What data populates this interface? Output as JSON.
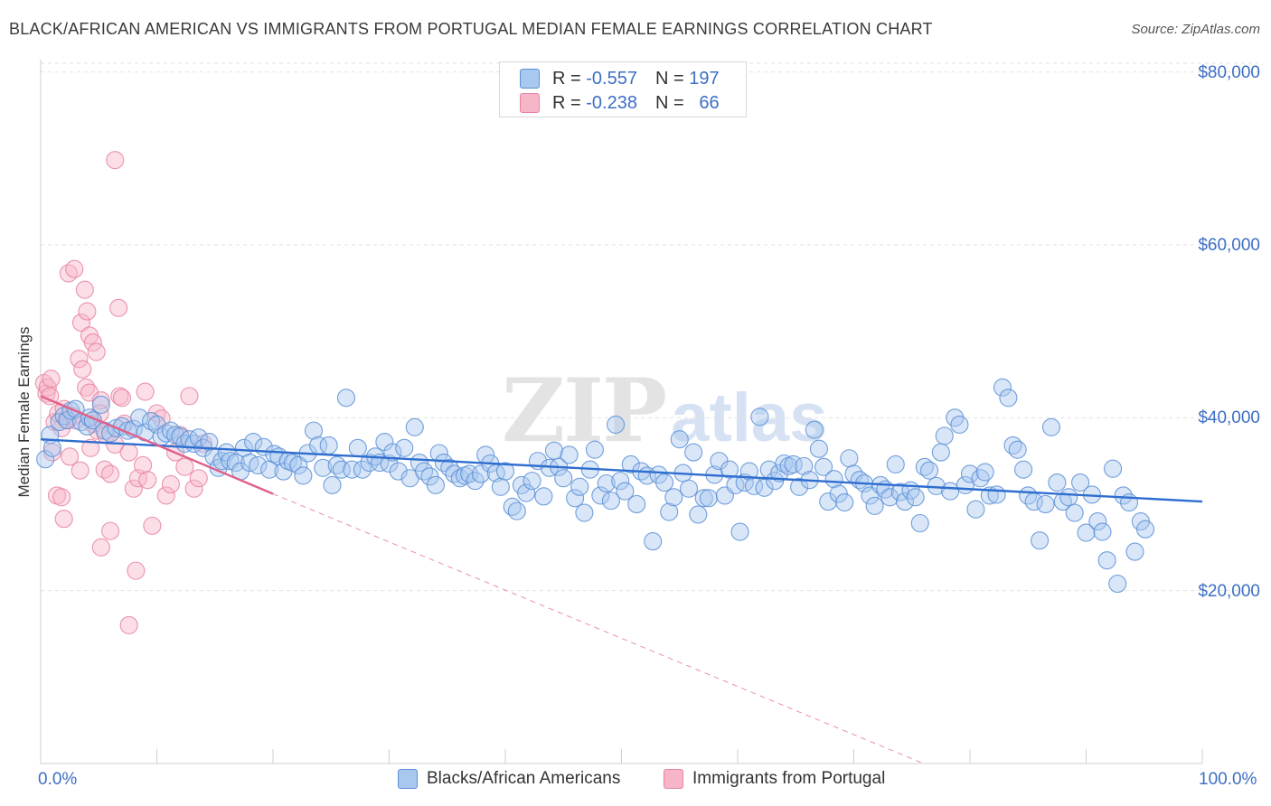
{
  "title": "BLACK/AFRICAN AMERICAN VS IMMIGRANTS FROM PORTUGAL MEDIAN FEMALE EARNINGS CORRELATION CHART",
  "source": "Source: ZipAtlas.com",
  "watermark": {
    "zip": "ZIP",
    "atlas": "atlas"
  },
  "legend": {
    "rows": [
      {
        "r_label": "R =",
        "r_value": "-0.557",
        "n_label": "N =",
        "n_value": "197"
      },
      {
        "r_label": "R =",
        "r_value": "-0.238",
        "n_label": "N =",
        "n_value": "66"
      }
    ]
  },
  "colors": {
    "blue_fill": "#a9c8f0",
    "blue_stroke": "#5b8fd6",
    "blue_line": "#2f6ecf",
    "pink_fill": "#f6b6c8",
    "pink_stroke": "#e882a2",
    "pink_line": "#e0608a",
    "grid": "#e2e2e2",
    "tick_text": "#3d6fc4"
  },
  "chart_data": {
    "type": "scatter",
    "title": "BLACK/AFRICAN AMERICAN VS IMMIGRANTS FROM PORTUGAL MEDIAN FEMALE EARNINGS CORRELATION CHART",
    "xlabel": "",
    "ylabel": "Median Female Earnings",
    "xlim": [
      0,
      100
    ],
    "ylim": [
      0,
      81000
    ],
    "x_tick_labels": [
      "0.0%",
      "100.0%"
    ],
    "y_ticks": [
      20000,
      40000,
      60000,
      80000
    ],
    "y_tick_labels": [
      "$20,000",
      "$40,000",
      "$60,000",
      "$80,000"
    ],
    "grid": true,
    "legend_position": "bottom",
    "series": [
      {
        "name": "Blacks/African Americans",
        "color": "#a9c8f0",
        "R": -0.557,
        "N": 197,
        "trend": {
          "x": [
            0,
            100
          ],
          "y": [
            37500,
            30300
          ]
        },
        "points": [
          [
            0.4,
            35200
          ],
          [
            0.8,
            38000
          ],
          [
            1.0,
            36500
          ],
          [
            1.6,
            39500
          ],
          [
            2.0,
            40200
          ],
          [
            2.3,
            39700
          ],
          [
            2.6,
            40800
          ],
          [
            3.0,
            41000
          ],
          [
            3.5,
            39500
          ],
          [
            4.0,
            39000
          ],
          [
            4.2,
            40000
          ],
          [
            4.5,
            39700
          ],
          [
            5.2,
            41500
          ],
          [
            5.5,
            38500
          ],
          [
            6.0,
            38200
          ],
          [
            6.5,
            38800
          ],
          [
            7.0,
            39000
          ],
          [
            7.5,
            38500
          ],
          [
            8.0,
            38700
          ],
          [
            8.5,
            40000
          ],
          [
            9.0,
            38300
          ],
          [
            9.5,
            39600
          ],
          [
            10.0,
            39200
          ],
          [
            10.4,
            37800
          ],
          [
            10.8,
            38200
          ],
          [
            11.2,
            38500
          ],
          [
            11.6,
            38000
          ],
          [
            12.0,
            37800
          ],
          [
            12.4,
            37000
          ],
          [
            12.8,
            37500
          ],
          [
            13.2,
            37000
          ],
          [
            13.6,
            37700
          ],
          [
            14.0,
            36500
          ],
          [
            14.5,
            37200
          ],
          [
            14.9,
            35500
          ],
          [
            15.3,
            34200
          ],
          [
            15.6,
            35000
          ],
          [
            16.0,
            36000
          ],
          [
            16.3,
            35000
          ],
          [
            16.8,
            34800
          ],
          [
            17.2,
            33800
          ],
          [
            17.5,
            36500
          ],
          [
            18.0,
            34800
          ],
          [
            18.3,
            37200
          ],
          [
            18.7,
            34500
          ],
          [
            19.2,
            36600
          ],
          [
            19.7,
            34000
          ],
          [
            20.1,
            35800
          ],
          [
            20.5,
            35500
          ],
          [
            20.9,
            33800
          ],
          [
            21.3,
            35000
          ],
          [
            21.7,
            34800
          ],
          [
            22.2,
            34500
          ],
          [
            22.6,
            33300
          ],
          [
            23.0,
            35900
          ],
          [
            23.5,
            38500
          ],
          [
            23.9,
            36800
          ],
          [
            24.3,
            34200
          ],
          [
            24.8,
            36800
          ],
          [
            25.1,
            32200
          ],
          [
            25.5,
            34500
          ],
          [
            25.9,
            34000
          ],
          [
            26.3,
            42300
          ],
          [
            26.8,
            34000
          ],
          [
            27.3,
            36500
          ],
          [
            27.7,
            34000
          ],
          [
            28.3,
            34800
          ],
          [
            28.8,
            35500
          ],
          [
            29.2,
            34800
          ],
          [
            29.6,
            37200
          ],
          [
            30.0,
            34700
          ],
          [
            30.3,
            36000
          ],
          [
            30.8,
            33800
          ],
          [
            31.3,
            36500
          ],
          [
            31.8,
            33000
          ],
          [
            32.2,
            38900
          ],
          [
            32.6,
            34800
          ],
          [
            33.0,
            33800
          ],
          [
            33.5,
            33200
          ],
          [
            34.0,
            32200
          ],
          [
            34.3,
            35900
          ],
          [
            34.7,
            34800
          ],
          [
            35.2,
            34200
          ],
          [
            35.6,
            33500
          ],
          [
            36.1,
            33000
          ],
          [
            36.5,
            33300
          ],
          [
            36.9,
            33500
          ],
          [
            37.4,
            32700
          ],
          [
            37.9,
            33500
          ],
          [
            38.3,
            35700
          ],
          [
            38.7,
            34700
          ],
          [
            39.2,
            33600
          ],
          [
            39.6,
            32000
          ],
          [
            40.0,
            33800
          ],
          [
            40.6,
            29700
          ],
          [
            41.0,
            29200
          ],
          [
            41.4,
            32200
          ],
          [
            41.8,
            31300
          ],
          [
            42.3,
            32700
          ],
          [
            42.8,
            35000
          ],
          [
            43.3,
            30900
          ],
          [
            43.8,
            34200
          ],
          [
            44.2,
            36200
          ],
          [
            44.6,
            34300
          ],
          [
            45.0,
            33000
          ],
          [
            45.5,
            35700
          ],
          [
            46.0,
            30700
          ],
          [
            46.4,
            32000
          ],
          [
            46.8,
            29000
          ],
          [
            47.3,
            34000
          ],
          [
            47.7,
            36300
          ],
          [
            48.2,
            31000
          ],
          [
            48.7,
            32400
          ],
          [
            49.1,
            30400
          ],
          [
            49.5,
            39200
          ],
          [
            49.9,
            32700
          ],
          [
            50.3,
            31500
          ],
          [
            50.8,
            34600
          ],
          [
            51.3,
            30000
          ],
          [
            51.7,
            33800
          ],
          [
            52.2,
            33300
          ],
          [
            52.7,
            25700
          ],
          [
            53.2,
            33400
          ],
          [
            53.7,
            32500
          ],
          [
            54.1,
            29100
          ],
          [
            54.5,
            30800
          ],
          [
            55.0,
            37500
          ],
          [
            55.3,
            33600
          ],
          [
            55.8,
            31800
          ],
          [
            56.2,
            36000
          ],
          [
            56.6,
            28800
          ],
          [
            57.1,
            30700
          ],
          [
            57.5,
            30700
          ],
          [
            58.0,
            33400
          ],
          [
            58.4,
            35000
          ],
          [
            58.9,
            31000
          ],
          [
            59.3,
            34000
          ],
          [
            59.8,
            32200
          ],
          [
            60.2,
            26800
          ],
          [
            60.6,
            32500
          ],
          [
            61.0,
            33800
          ],
          [
            61.4,
            32100
          ],
          [
            61.9,
            40100
          ],
          [
            62.3,
            31900
          ],
          [
            62.7,
            34000
          ],
          [
            63.2,
            32700
          ],
          [
            63.6,
            33600
          ],
          [
            64.0,
            34700
          ],
          [
            64.4,
            34400
          ],
          [
            64.8,
            34600
          ],
          [
            65.3,
            32000
          ],
          [
            65.7,
            34400
          ],
          [
            66.2,
            32800
          ],
          [
            66.6,
            38600
          ],
          [
            67.0,
            36400
          ],
          [
            67.4,
            34300
          ],
          [
            67.8,
            30300
          ],
          [
            68.3,
            32900
          ],
          [
            68.7,
            31200
          ],
          [
            69.2,
            30200
          ],
          [
            69.6,
            35300
          ],
          [
            70.0,
            33500
          ],
          [
            70.5,
            32800
          ],
          [
            70.9,
            32400
          ],
          [
            71.4,
            31000
          ],
          [
            71.8,
            29800
          ],
          [
            72.3,
            32200
          ],
          [
            72.7,
            31700
          ],
          [
            73.1,
            30800
          ],
          [
            73.6,
            34600
          ],
          [
            74.0,
            31400
          ],
          [
            74.4,
            30300
          ],
          [
            74.9,
            31600
          ],
          [
            75.3,
            30800
          ],
          [
            75.7,
            27800
          ],
          [
            76.1,
            34300
          ],
          [
            76.5,
            33900
          ],
          [
            77.1,
            32100
          ],
          [
            77.5,
            36000
          ],
          [
            77.8,
            37900
          ],
          [
            78.3,
            31500
          ],
          [
            78.7,
            40000
          ],
          [
            79.1,
            39200
          ],
          [
            79.6,
            32200
          ],
          [
            80.0,
            33500
          ],
          [
            80.5,
            29400
          ],
          [
            80.9,
            33000
          ],
          [
            81.3,
            33700
          ],
          [
            81.7,
            31000
          ],
          [
            82.3,
            31100
          ],
          [
            82.8,
            43500
          ],
          [
            83.3,
            42300
          ],
          [
            83.7,
            36800
          ],
          [
            84.1,
            36300
          ],
          [
            84.6,
            34000
          ],
          [
            85.0,
            31000
          ],
          [
            85.5,
            30300
          ],
          [
            86.0,
            25800
          ],
          [
            86.5,
            30000
          ],
          [
            87.0,
            38900
          ],
          [
            87.5,
            32500
          ],
          [
            88.0,
            30300
          ],
          [
            88.5,
            30800
          ],
          [
            89.0,
            29000
          ],
          [
            89.5,
            32500
          ],
          [
            90.0,
            26700
          ],
          [
            90.5,
            31100
          ],
          [
            91.0,
            28000
          ],
          [
            91.4,
            26800
          ],
          [
            91.8,
            23500
          ],
          [
            92.3,
            34100
          ],
          [
            92.7,
            20800
          ],
          [
            93.2,
            31000
          ],
          [
            93.7,
            30200
          ],
          [
            94.2,
            24500
          ],
          [
            94.7,
            28000
          ],
          [
            95.1,
            27100
          ]
        ]
      },
      {
        "name": "Immigrants from Portugal",
        "color": "#f6b6c8",
        "R": -0.238,
        "N": 66,
        "trend": {
          "x": [
            0,
            20
          ],
          "y": [
            42500,
            31200
          ]
        },
        "trend_extension": {
          "x": [
            20,
            76
          ],
          "y": [
            31200,
            0
          ]
        },
        "points": [
          [
            0.3,
            44000
          ],
          [
            0.5,
            42800
          ],
          [
            0.6,
            43500
          ],
          [
            0.8,
            42500
          ],
          [
            1.0,
            36000
          ],
          [
            1.2,
            39500
          ],
          [
            1.5,
            40500
          ],
          [
            1.8,
            38800
          ],
          [
            2.0,
            41000
          ],
          [
            2.2,
            39800
          ],
          [
            2.5,
            35500
          ],
          [
            2.8,
            40200
          ],
          [
            3.0,
            39700
          ],
          [
            3.3,
            46800
          ],
          [
            3.6,
            45600
          ],
          [
            3.9,
            43500
          ],
          [
            4.2,
            42900
          ],
          [
            4.5,
            39300
          ],
          [
            4.9,
            38500
          ],
          [
            5.2,
            42000
          ],
          [
            5.6,
            38000
          ],
          [
            0.9,
            44500
          ],
          [
            1.4,
            31000
          ],
          [
            1.8,
            30800
          ],
          [
            2.0,
            28300
          ],
          [
            2.4,
            56700
          ],
          [
            2.9,
            57200
          ],
          [
            3.5,
            51000
          ],
          [
            3.8,
            54800
          ],
          [
            4.0,
            52300
          ],
          [
            4.2,
            49500
          ],
          [
            4.5,
            48700
          ],
          [
            4.8,
            47600
          ],
          [
            5.1,
            40500
          ],
          [
            5.5,
            34000
          ],
          [
            6.0,
            33500
          ],
          [
            6.4,
            36900
          ],
          [
            6.8,
            42500
          ],
          [
            7.2,
            39300
          ],
          [
            7.6,
            36000
          ],
          [
            8.0,
            31800
          ],
          [
            8.4,
            33000
          ],
          [
            8.8,
            34500
          ],
          [
            9.2,
            32800
          ],
          [
            9.6,
            27500
          ],
          [
            10.0,
            40500
          ],
          [
            10.4,
            39900
          ],
          [
            10.8,
            31000
          ],
          [
            11.2,
            32300
          ],
          [
            11.6,
            36000
          ],
          [
            12.0,
            38000
          ],
          [
            12.4,
            34300
          ],
          [
            12.8,
            42500
          ],
          [
            13.2,
            31800
          ],
          [
            13.6,
            33000
          ],
          [
            14.0,
            37000
          ],
          [
            3.4,
            33900
          ],
          [
            4.3,
            36500
          ],
          [
            5.2,
            25000
          ],
          [
            6.0,
            26900
          ],
          [
            6.4,
            69800
          ],
          [
            6.7,
            52700
          ],
          [
            7.0,
            42300
          ],
          [
            7.6,
            16000
          ],
          [
            8.2,
            22300
          ],
          [
            9.0,
            43000
          ]
        ]
      }
    ]
  },
  "bottom_legend": {
    "items": [
      {
        "label": "Blacks/African Americans"
      },
      {
        "label": "Immigrants from Portugal"
      }
    ]
  }
}
